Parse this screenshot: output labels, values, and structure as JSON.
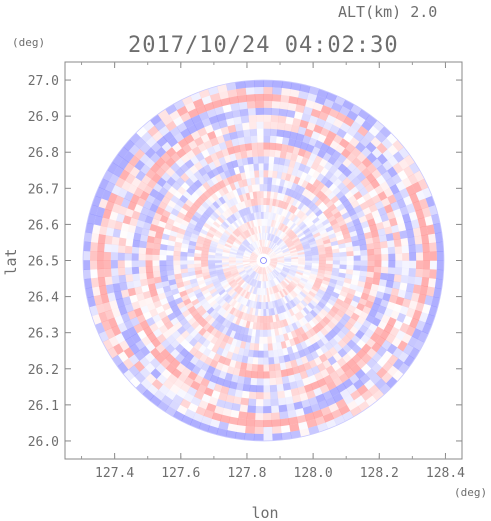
{
  "header": {
    "altitude_label": "ALT(km) 2.0",
    "timestamp": "2017/10/24 04:02:30"
  },
  "chart_data": {
    "type": "heatmap",
    "title": "2017/10/24 04:02:30",
    "subtitle": "ALT(km) 2.0",
    "xlabel": "lon",
    "ylabel": "lat",
    "x_unit": "(deg)",
    "y_unit": "(deg)",
    "xlim": [
      127.25,
      128.45
    ],
    "ylim": [
      25.95,
      27.05
    ],
    "x_ticks": [
      "127.4",
      "127.6",
      "127.8",
      "128.0",
      "128.2",
      "128.4"
    ],
    "y_ticks": [
      "26.0",
      "26.1",
      "26.2",
      "26.3",
      "26.4",
      "26.5",
      "26.6",
      "26.7",
      "26.8",
      "26.9",
      "27.0"
    ],
    "radar_center": {
      "lon": 127.85,
      "lat": 26.5
    },
    "radar_radius_deg_lat": 0.5,
    "pattern": "polar range-azimuth field, alternating red/blue rings (diverging colormap around white)",
    "colors": {
      "positive": "#ff7f7f",
      "negative": "#8080ff",
      "neutral": "#ffffff",
      "axis": "#888888",
      "text": "#6e6e6e"
    },
    "grid": false
  }
}
